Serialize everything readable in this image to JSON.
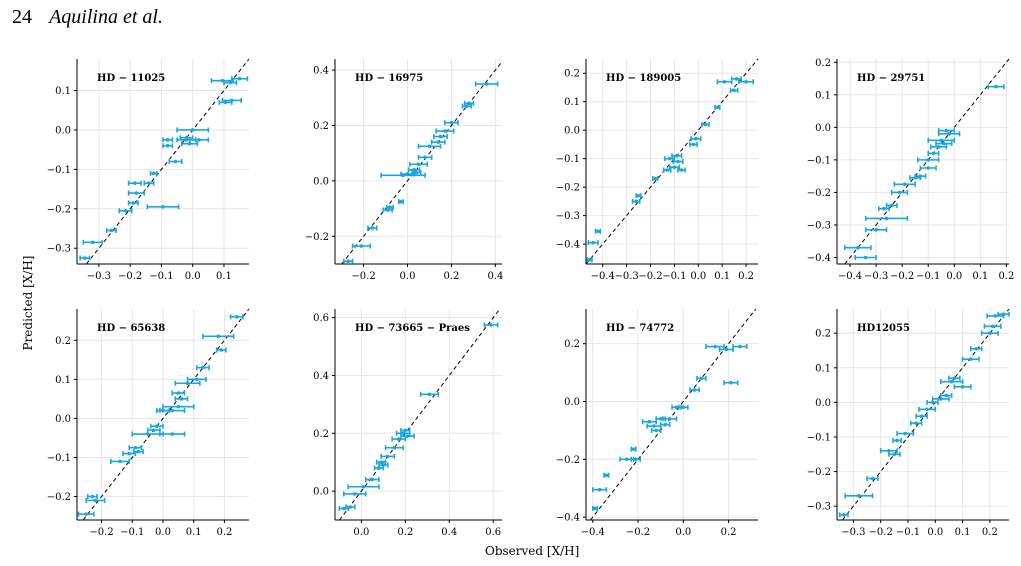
{
  "header": {
    "page_number": "24",
    "authors": "Aquilina et al."
  },
  "figure": {
    "ylabel": "Predicted [X/H]",
    "xlabel": "Observed [X/H]"
  },
  "colors": {
    "points": "#1aa7e0",
    "identity_line": "#000000",
    "grid": "#e6e6e6"
  },
  "chart_data": [
    {
      "type": "scatter",
      "title": "HD − 11025",
      "xlim": [
        -0.37,
        0.18
      ],
      "ylim": [
        -0.34,
        0.18
      ],
      "xticks": [
        -0.3,
        -0.2,
        -0.1,
        0.0,
        0.1
      ],
      "xtick_labels": [
        "−0.3",
        "−0.2",
        "−0.1",
        "0.0",
        "0.1"
      ],
      "yticks": [
        -0.3,
        -0.2,
        -0.1,
        0.0,
        0.1
      ],
      "ytick_labels": [
        "−0.3",
        "−0.2",
        "−0.1",
        "0.0",
        "0.1"
      ],
      "identity_line": true,
      "grid": true,
      "points": [
        {
          "x": -0.345,
          "y": -0.325,
          "xerr": 0.015
        },
        {
          "x": -0.32,
          "y": -0.285,
          "xerr": 0.03
        },
        {
          "x": -0.26,
          "y": -0.255,
          "xerr": 0.015
        },
        {
          "x": -0.215,
          "y": -0.205,
          "xerr": 0.02
        },
        {
          "x": -0.19,
          "y": -0.185,
          "xerr": 0.015
        },
        {
          "x": -0.095,
          "y": -0.195,
          "xerr": 0.05
        },
        {
          "x": -0.18,
          "y": -0.16,
          "xerr": 0.025
        },
        {
          "x": -0.185,
          "y": -0.135,
          "xerr": 0.02
        },
        {
          "x": -0.14,
          "y": -0.135,
          "xerr": 0.015
        },
        {
          "x": -0.125,
          "y": -0.11,
          "xerr": 0.01
        },
        {
          "x": -0.055,
          "y": -0.08,
          "xerr": 0.02
        },
        {
          "x": -0.08,
          "y": -0.04,
          "xerr": 0.015
        },
        {
          "x": -0.08,
          "y": -0.025,
          "xerr": 0.015
        },
        {
          "x": -0.02,
          "y": -0.025,
          "xerr": 0.03
        },
        {
          "x": -0.01,
          "y": -0.035,
          "xerr": 0.025
        },
        {
          "x": 0.02,
          "y": -0.025,
          "xerr": 0.03
        },
        {
          "x": -0.02,
          "y": -0.02,
          "xerr": 0.02
        },
        {
          "x": 0.0,
          "y": 0.0,
          "xerr": 0.05
        },
        {
          "x": 0.105,
          "y": 0.07,
          "xerr": 0.02
        },
        {
          "x": 0.125,
          "y": 0.075,
          "xerr": 0.03
        },
        {
          "x": 0.12,
          "y": 0.12,
          "xerr": 0.02
        },
        {
          "x": 0.095,
          "y": 0.125,
          "xerr": 0.035
        },
        {
          "x": 0.15,
          "y": 0.13,
          "xerr": 0.025
        }
      ]
    },
    {
      "type": "scatter",
      "title": "HD − 16975",
      "xlim": [
        -0.33,
        0.43
      ],
      "ylim": [
        -0.3,
        0.44
      ],
      "xticks": [
        -0.2,
        0.0,
        0.2,
        0.4
      ],
      "xtick_labels": [
        "−0.2",
        "0.0",
        "0.2",
        "0.4"
      ],
      "yticks": [
        -0.2,
        0.0,
        0.2,
        0.4
      ],
      "ytick_labels": [
        "−0.2",
        "0.0",
        "0.2",
        "0.4"
      ],
      "identity_line": true,
      "grid": true,
      "points": [
        {
          "x": -0.27,
          "y": -0.29,
          "xerr": 0.02
        },
        {
          "x": -0.21,
          "y": -0.235,
          "xerr": 0.04
        },
        {
          "x": -0.16,
          "y": -0.17,
          "xerr": 0.02
        },
        {
          "x": -0.09,
          "y": -0.105,
          "xerr": 0.02
        },
        {
          "x": -0.08,
          "y": -0.095,
          "xerr": 0.015
        },
        {
          "x": -0.03,
          "y": -0.075,
          "xerr": 0.01
        },
        {
          "x": -0.02,
          "y": 0.02,
          "xerr": 0.1
        },
        {
          "x": 0.0,
          "y": 0.025,
          "xerr": 0.03
        },
        {
          "x": 0.03,
          "y": 0.04,
          "xerr": 0.025
        },
        {
          "x": 0.04,
          "y": 0.03,
          "xerr": 0.02
        },
        {
          "x": 0.05,
          "y": 0.06,
          "xerr": 0.04
        },
        {
          "x": 0.08,
          "y": 0.085,
          "xerr": 0.03
        },
        {
          "x": 0.1,
          "y": 0.125,
          "xerr": 0.05
        },
        {
          "x": 0.14,
          "y": 0.14,
          "xerr": 0.03
        },
        {
          "x": 0.15,
          "y": 0.16,
          "xerr": 0.03
        },
        {
          "x": 0.17,
          "y": 0.18,
          "xerr": 0.04
        },
        {
          "x": 0.2,
          "y": 0.21,
          "xerr": 0.03
        },
        {
          "x": 0.27,
          "y": 0.27,
          "xerr": 0.02
        },
        {
          "x": 0.28,
          "y": 0.28,
          "xerr": 0.02
        },
        {
          "x": 0.36,
          "y": 0.35,
          "xerr": 0.05
        }
      ]
    },
    {
      "type": "scatter",
      "title": "HD − 189005",
      "xlim": [
        -0.47,
        0.25
      ],
      "ylim": [
        -0.47,
        0.25
      ],
      "xticks": [
        -0.4,
        -0.3,
        -0.2,
        -0.1,
        0.0,
        0.1,
        0.2
      ],
      "xtick_labels": [
        "−0.4",
        "−0.3",
        "−0.2",
        "−0.1",
        "0.0",
        "0.1",
        "0.2"
      ],
      "yticks": [
        -0.4,
        -0.3,
        -0.2,
        -0.1,
        0.0,
        0.1,
        0.2
      ],
      "ytick_labels": [
        "−0.4",
        "−0.3",
        "−0.2",
        "−0.1",
        "0.0",
        "0.1",
        "0.2"
      ],
      "identity_line": true,
      "grid": true,
      "points": [
        {
          "x": -0.455,
          "y": -0.455,
          "xerr": 0.01
        },
        {
          "x": -0.44,
          "y": -0.395,
          "xerr": 0.02
        },
        {
          "x": -0.42,
          "y": -0.355,
          "xerr": 0.01
        },
        {
          "x": -0.26,
          "y": -0.25,
          "xerr": 0.015
        },
        {
          "x": -0.25,
          "y": -0.23,
          "xerr": 0.01
        },
        {
          "x": -0.18,
          "y": -0.17,
          "xerr": 0.01
        },
        {
          "x": -0.13,
          "y": -0.14,
          "xerr": 0.015
        },
        {
          "x": -0.12,
          "y": -0.1,
          "xerr": 0.02
        },
        {
          "x": -0.1,
          "y": -0.13,
          "xerr": 0.02
        },
        {
          "x": -0.09,
          "y": -0.09,
          "xerr": 0.02
        },
        {
          "x": -0.085,
          "y": -0.11,
          "xerr": 0.02
        },
        {
          "x": -0.07,
          "y": -0.14,
          "xerr": 0.015
        },
        {
          "x": -0.02,
          "y": -0.05,
          "xerr": 0.015
        },
        {
          "x": -0.01,
          "y": -0.03,
          "xerr": 0.02
        },
        {
          "x": 0.03,
          "y": 0.02,
          "xerr": 0.015
        },
        {
          "x": 0.08,
          "y": 0.08,
          "xerr": 0.01
        },
        {
          "x": 0.15,
          "y": 0.14,
          "xerr": 0.015
        },
        {
          "x": 0.11,
          "y": 0.17,
          "xerr": 0.03
        },
        {
          "x": 0.16,
          "y": 0.18,
          "xerr": 0.02
        },
        {
          "x": 0.2,
          "y": 0.17,
          "xerr": 0.03
        }
      ]
    },
    {
      "type": "scatter",
      "title": "HD − 29751",
      "xlim": [
        -0.45,
        0.21
      ],
      "ylim": [
        -0.42,
        0.21
      ],
      "xticks": [
        -0.4,
        -0.3,
        -0.2,
        -0.1,
        0.0,
        0.1,
        0.2
      ],
      "xtick_labels": [
        "−0.4",
        "−0.3",
        "−0.2",
        "−0.1",
        "0.0",
        "0.1",
        "0.2"
      ],
      "yticks": [
        -0.4,
        -0.3,
        -0.2,
        -0.1,
        0.0,
        0.1,
        0.2
      ],
      "ytick_labels": [
        "−0.4",
        "−0.3",
        "−0.2",
        "−0.1",
        "0.0",
        "0.1",
        "0.2"
      ],
      "identity_line": true,
      "grid": true,
      "points": [
        {
          "x": -0.37,
          "y": -0.37,
          "xerr": 0.05
        },
        {
          "x": -0.34,
          "y": -0.4,
          "xerr": 0.04
        },
        {
          "x": -0.3,
          "y": -0.315,
          "xerr": 0.04
        },
        {
          "x": -0.26,
          "y": -0.28,
          "xerr": 0.08
        },
        {
          "x": -0.27,
          "y": -0.25,
          "xerr": 0.02
        },
        {
          "x": -0.24,
          "y": -0.24,
          "xerr": 0.02
        },
        {
          "x": -0.21,
          "y": -0.2,
          "xerr": 0.03
        },
        {
          "x": -0.19,
          "y": -0.175,
          "xerr": 0.04
        },
        {
          "x": -0.15,
          "y": -0.155,
          "xerr": 0.02
        },
        {
          "x": -0.13,
          "y": -0.15,
          "xerr": 0.02
        },
        {
          "x": -0.1,
          "y": -0.125,
          "xerr": 0.03
        },
        {
          "x": -0.1,
          "y": -0.1,
          "xerr": 0.04
        },
        {
          "x": -0.08,
          "y": -0.08,
          "xerr": 0.02
        },
        {
          "x": -0.06,
          "y": -0.06,
          "xerr": 0.03
        },
        {
          "x": -0.05,
          "y": -0.04,
          "xerr": 0.05
        },
        {
          "x": -0.04,
          "y": -0.05,
          "xerr": 0.03
        },
        {
          "x": -0.02,
          "y": -0.02,
          "xerr": 0.04
        },
        {
          "x": -0.03,
          "y": -0.01,
          "xerr": 0.03
        },
        {
          "x": 0.16,
          "y": 0.125,
          "xerr": 0.03
        }
      ]
    },
    {
      "type": "scatter",
      "title": "HD − 65638",
      "xlim": [
        -0.28,
        0.28
      ],
      "ylim": [
        -0.26,
        0.28
      ],
      "xticks": [
        -0.2,
        -0.1,
        0.0,
        0.1,
        0.2
      ],
      "xtick_labels": [
        "−0.2",
        "−0.1",
        "0.0",
        "0.1",
        "0.2"
      ],
      "yticks": [
        -0.2,
        -0.1,
        0.0,
        0.1,
        0.2
      ],
      "ytick_labels": [
        "−0.2",
        "−0.1",
        "0.0",
        "0.1",
        "0.2"
      ],
      "identity_line": true,
      "grid": true,
      "points": [
        {
          "x": -0.25,
          "y": -0.245,
          "xerr": 0.025
        },
        {
          "x": -0.22,
          "y": -0.21,
          "xerr": 0.03
        },
        {
          "x": -0.23,
          "y": -0.2,
          "xerr": 0.015
        },
        {
          "x": -0.14,
          "y": -0.11,
          "xerr": 0.03
        },
        {
          "x": -0.11,
          "y": -0.09,
          "xerr": 0.02
        },
        {
          "x": -0.08,
          "y": -0.085,
          "xerr": 0.015
        },
        {
          "x": -0.09,
          "y": -0.075,
          "xerr": 0.02
        },
        {
          "x": -0.05,
          "y": -0.04,
          "xerr": 0.05
        },
        {
          "x": 0.03,
          "y": -0.04,
          "xerr": 0.04
        },
        {
          "x": -0.03,
          "y": -0.03,
          "xerr": 0.02
        },
        {
          "x": -0.02,
          "y": -0.02,
          "xerr": 0.02
        },
        {
          "x": 0.0,
          "y": 0.02,
          "xerr": 0.02
        },
        {
          "x": 0.03,
          "y": 0.02,
          "xerr": 0.04
        },
        {
          "x": 0.05,
          "y": 0.03,
          "xerr": 0.05
        },
        {
          "x": 0.06,
          "y": 0.05,
          "xerr": 0.02
        },
        {
          "x": 0.05,
          "y": 0.065,
          "xerr": 0.02
        },
        {
          "x": 0.08,
          "y": 0.09,
          "xerr": 0.04
        },
        {
          "x": 0.11,
          "y": 0.1,
          "xerr": 0.03
        },
        {
          "x": 0.13,
          "y": 0.13,
          "xerr": 0.02
        },
        {
          "x": 0.19,
          "y": 0.175,
          "xerr": 0.015
        },
        {
          "x": 0.18,
          "y": 0.21,
          "xerr": 0.05
        },
        {
          "x": 0.24,
          "y": 0.26,
          "xerr": 0.02
        }
      ]
    },
    {
      "type": "scatter",
      "title": "HD − 73665 − Praes",
      "xlim": [
        -0.12,
        0.64
      ],
      "ylim": [
        -0.1,
        0.63
      ],
      "xticks": [
        0.0,
        0.2,
        0.4,
        0.6
      ],
      "xtick_labels": [
        "0.0",
        "0.2",
        "0.4",
        "0.6"
      ],
      "yticks": [
        0.0,
        0.2,
        0.4,
        0.6
      ],
      "ytick_labels": [
        "0.0",
        "0.2",
        "0.4",
        "0.6"
      ],
      "identity_line": true,
      "grid": true,
      "points": [
        {
          "x": -0.08,
          "y": -0.06,
          "xerr": 0.02
        },
        {
          "x": -0.05,
          "y": -0.055,
          "xerr": 0.02
        },
        {
          "x": -0.03,
          "y": -0.01,
          "xerr": 0.05
        },
        {
          "x": 0.01,
          "y": 0.015,
          "xerr": 0.07
        },
        {
          "x": 0.05,
          "y": 0.04,
          "xerr": 0.03
        },
        {
          "x": 0.08,
          "y": 0.08,
          "xerr": 0.02
        },
        {
          "x": 0.09,
          "y": 0.1,
          "xerr": 0.02
        },
        {
          "x": 0.1,
          "y": 0.09,
          "xerr": 0.02
        },
        {
          "x": 0.12,
          "y": 0.12,
          "xerr": 0.03
        },
        {
          "x": 0.15,
          "y": 0.15,
          "xerr": 0.04
        },
        {
          "x": 0.17,
          "y": 0.18,
          "xerr": 0.03
        },
        {
          "x": 0.19,
          "y": 0.2,
          "xerr": 0.03
        },
        {
          "x": 0.2,
          "y": 0.21,
          "xerr": 0.02
        },
        {
          "x": 0.21,
          "y": 0.19,
          "xerr": 0.03
        },
        {
          "x": 0.31,
          "y": 0.335,
          "xerr": 0.04
        },
        {
          "x": 0.59,
          "y": 0.575,
          "xerr": 0.03
        }
      ]
    },
    {
      "type": "scatter",
      "title": "HD − 74772",
      "xlim": [
        -0.43,
        0.33
      ],
      "ylim": [
        -0.41,
        0.32
      ],
      "xticks": [
        -0.4,
        -0.2,
        0.0,
        0.2
      ],
      "xtick_labels": [
        "−0.4",
        "−0.2",
        "0.0",
        "0.2"
      ],
      "yticks": [
        -0.4,
        -0.2,
        0.0,
        0.2
      ],
      "ytick_labels": [
        "−0.4",
        "−0.2",
        "0.0",
        "0.2"
      ],
      "identity_line": true,
      "grid": true,
      "points": [
        {
          "x": -0.39,
          "y": -0.37,
          "xerr": 0.01
        },
        {
          "x": -0.37,
          "y": -0.305,
          "xerr": 0.03
        },
        {
          "x": -0.34,
          "y": -0.255,
          "xerr": 0.01
        },
        {
          "x": -0.25,
          "y": -0.2,
          "xerr": 0.03
        },
        {
          "x": -0.22,
          "y": -0.165,
          "xerr": 0.01
        },
        {
          "x": -0.21,
          "y": -0.2,
          "xerr": 0.02
        },
        {
          "x": -0.15,
          "y": -0.07,
          "xerr": 0.03
        },
        {
          "x": -0.13,
          "y": -0.085,
          "xerr": 0.03
        },
        {
          "x": -0.12,
          "y": -0.1,
          "xerr": 0.02
        },
        {
          "x": -0.1,
          "y": -0.06,
          "xerr": 0.02
        },
        {
          "x": -0.08,
          "y": -0.08,
          "xerr": 0.02
        },
        {
          "x": -0.06,
          "y": -0.06,
          "xerr": 0.03
        },
        {
          "x": -0.03,
          "y": -0.02,
          "xerr": 0.02
        },
        {
          "x": 0.0,
          "y": -0.02,
          "xerr": 0.02
        },
        {
          "x": 0.05,
          "y": 0.04,
          "xerr": 0.02
        },
        {
          "x": 0.08,
          "y": 0.08,
          "xerr": 0.02
        },
        {
          "x": 0.14,
          "y": 0.19,
          "xerr": 0.04
        },
        {
          "x": 0.19,
          "y": 0.18,
          "xerr": 0.03
        },
        {
          "x": 0.25,
          "y": 0.19,
          "xerr": 0.03
        },
        {
          "x": 0.21,
          "y": 0.065,
          "xerr": 0.03
        }
      ]
    },
    {
      "type": "scatter",
      "title": "HD12055",
      "xlim": [
        -0.36,
        0.27
      ],
      "ylim": [
        -0.34,
        0.27
      ],
      "xticks": [
        -0.3,
        -0.2,
        -0.1,
        0.0,
        0.1,
        0.2
      ],
      "xtick_labels": [
        "−0.3",
        "−0.2",
        "−0.1",
        "0.0",
        "0.1",
        "0.2"
      ],
      "yticks": [
        -0.3,
        -0.2,
        -0.1,
        0.0,
        0.1,
        0.2
      ],
      "ytick_labels": [
        "−0.3",
        "−0.2",
        "−0.1",
        "0.0",
        "0.1",
        "0.2"
      ],
      "identity_line": true,
      "grid": true,
      "points": [
        {
          "x": -0.335,
          "y": -0.325,
          "xerr": 0.015
        },
        {
          "x": -0.28,
          "y": -0.27,
          "xerr": 0.05
        },
        {
          "x": -0.23,
          "y": -0.22,
          "xerr": 0.02
        },
        {
          "x": -0.17,
          "y": -0.14,
          "xerr": 0.03
        },
        {
          "x": -0.15,
          "y": -0.15,
          "xerr": 0.02
        },
        {
          "x": -0.14,
          "y": -0.11,
          "xerr": 0.015
        },
        {
          "x": -0.11,
          "y": -0.09,
          "xerr": 0.03
        },
        {
          "x": -0.07,
          "y": -0.06,
          "xerr": 0.02
        },
        {
          "x": -0.05,
          "y": -0.04,
          "xerr": 0.02
        },
        {
          "x": -0.03,
          "y": -0.02,
          "xerr": 0.03
        },
        {
          "x": -0.01,
          "y": 0.0,
          "xerr": 0.02
        },
        {
          "x": 0.02,
          "y": 0.01,
          "xerr": 0.03
        },
        {
          "x": 0.04,
          "y": 0.02,
          "xerr": 0.02
        },
        {
          "x": 0.06,
          "y": 0.06,
          "xerr": 0.04
        },
        {
          "x": 0.07,
          "y": 0.07,
          "xerr": 0.02
        },
        {
          "x": 0.1,
          "y": 0.045,
          "xerr": 0.03
        },
        {
          "x": 0.13,
          "y": 0.125,
          "xerr": 0.03
        },
        {
          "x": 0.15,
          "y": 0.155,
          "xerr": 0.02
        },
        {
          "x": 0.2,
          "y": 0.2,
          "xerr": 0.03
        },
        {
          "x": 0.21,
          "y": 0.22,
          "xerr": 0.03
        },
        {
          "x": 0.22,
          "y": 0.25,
          "xerr": 0.03
        },
        {
          "x": 0.25,
          "y": 0.255,
          "xerr": 0.02
        }
      ]
    }
  ]
}
